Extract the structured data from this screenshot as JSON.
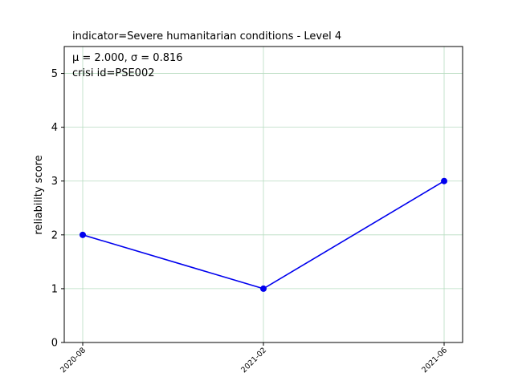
{
  "chart_data": {
    "type": "line",
    "title": "indicator=Severe humanitarian conditions - Level 4",
    "annotations": [
      "μ = 2.000,  σ = 0.816",
      "crisi id=PSE002"
    ],
    "xlabel": "",
    "ylabel": "reliability score",
    "categories": [
      "2020-08",
      "2021-02",
      "2021-06"
    ],
    "series": [
      {
        "values": [
          2,
          1,
          3
        ]
      }
    ],
    "ylim": [
      0,
      5.5
    ],
    "yticks": [
      0,
      1,
      2,
      3,
      4,
      5
    ],
    "grid": true,
    "line_color": "#0000ee",
    "grid_color": "#b7dcc0"
  }
}
